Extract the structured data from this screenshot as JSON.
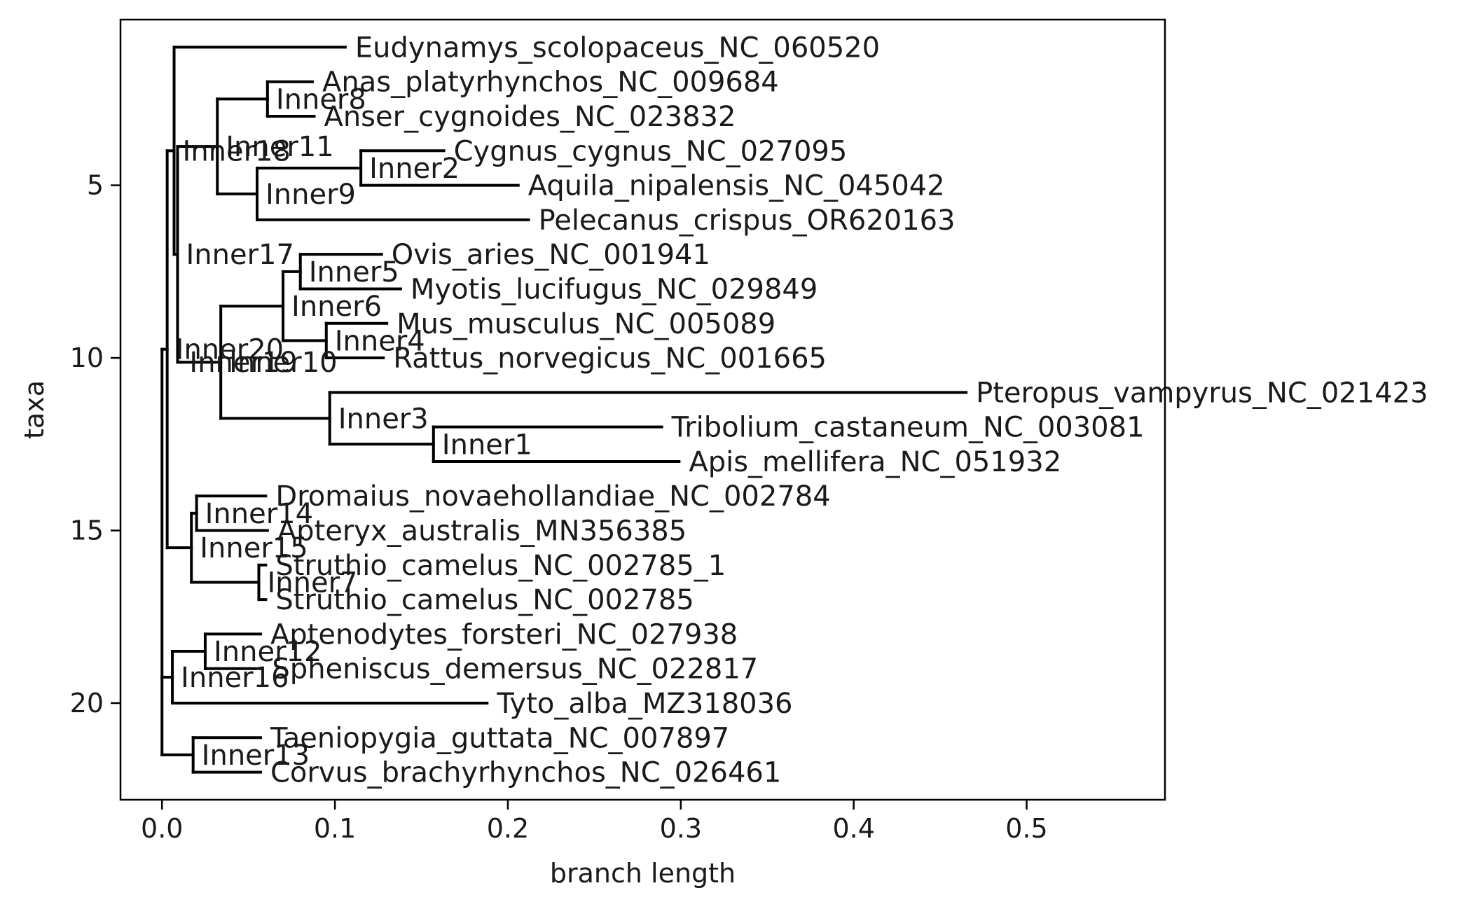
{
  "chart_data": {
    "type": "tree",
    "xlabel": "branch length",
    "ylabel": "taxa",
    "xlim": [
      -0.024,
      0.58
    ],
    "ylim": [
      22.8,
      0.2
    ],
    "xticks": [
      0.0,
      0.1,
      0.2,
      0.3,
      0.4,
      0.5
    ],
    "yticks": [
      5,
      10,
      15,
      20
    ],
    "grid": false,
    "leaves": [
      {
        "name": "Eudynamys_scolopaceus_NC_060520",
        "x": 0.106,
        "y": 1
      },
      {
        "name": "Anas_platyrhynchos_NC_009684",
        "x": 0.087,
        "y": 2
      },
      {
        "name": "Anser_cygnoides_NC_023832",
        "x": 0.088,
        "y": 3
      },
      {
        "name": "Cygnus_cygnus_NC_027095",
        "x": 0.163,
        "y": 4
      },
      {
        "name": "Aquila_nipalensis_NC_045042",
        "x": 0.206,
        "y": 5
      },
      {
        "name": "Pelecanus_crispus_OR620163",
        "x": 0.212,
        "y": 6
      },
      {
        "name": "Ovis_aries_NC_001941",
        "x": 0.127,
        "y": 7
      },
      {
        "name": "Myotis_lucifugus_NC_029849",
        "x": 0.138,
        "y": 8
      },
      {
        "name": "Mus_musculus_NC_005089",
        "x": 0.13,
        "y": 9
      },
      {
        "name": "Rattus_norvegicus_NC_001665",
        "x": 0.128,
        "y": 10
      },
      {
        "name": "Pteropus_vampyrus_NC_021423",
        "x": 0.465,
        "y": 11
      },
      {
        "name": "Tribolium_castaneum_NC_003081",
        "x": 0.289,
        "y": 12
      },
      {
        "name": "Apis_mellifera_NC_051932",
        "x": 0.299,
        "y": 13
      },
      {
        "name": "Dromaius_novaehollandiae_NC_002784",
        "x": 0.06,
        "y": 14
      },
      {
        "name": "Apteryx_australis_MN356385",
        "x": 0.061,
        "y": 15
      },
      {
        "name": "Struthio_camelus_NC_002785_1",
        "x": 0.06,
        "y": 16
      },
      {
        "name": "Struthio_camelus_NC_002785",
        "x": 0.06,
        "y": 17
      },
      {
        "name": "Aptenodytes_forsteri_NC_027938",
        "x": 0.057,
        "y": 18
      },
      {
        "name": "Spheniscus_demersus_NC_022817",
        "x": 0.058,
        "y": 19
      },
      {
        "name": "Tyto_alba_MZ318036",
        "x": 0.188,
        "y": 20
      },
      {
        "name": "Taeniopygia_guttata_NC_007897",
        "x": 0.057,
        "y": 21
      },
      {
        "name": "Corvus_brachyrhynchos_NC_026461",
        "x": 0.057,
        "y": 22
      }
    ],
    "internal": [
      {
        "name": "",
        "x": 0.0,
        "children": [
          "Inner20",
          "Inner16",
          "Inner13"
        ]
      },
      {
        "name": "Inner20",
        "x": 0.003,
        "children": [
          "Inner18",
          "Inner15"
        ]
      },
      {
        "name": "Inner18",
        "x": 0.007,
        "children": [
          "Eudynamys_scolopaceus_NC_060520",
          "Inner17"
        ]
      },
      {
        "name": "Inner17",
        "x": 0.009,
        "children": [
          "Inner11",
          "Inner19"
        ]
      },
      {
        "name": "Inner11",
        "x": 0.032,
        "children": [
          "Inner8",
          "Inner9"
        ]
      },
      {
        "name": "Inner8",
        "x": 0.061,
        "children": [
          "Anas_platyrhynchos_NC_009684",
          "Anser_cygnoides_NC_023832"
        ]
      },
      {
        "name": "Inner9",
        "x": 0.055,
        "children": [
          "Inner2",
          "Pelecanus_crispus_OR620163"
        ]
      },
      {
        "name": "Inner2",
        "x": 0.115,
        "children": [
          "Cygnus_cygnus_NC_027095",
          "Aquila_nipalensis_NC_045042"
        ]
      },
      {
        "name": "Inner19",
        "x": 0.011,
        "children": [
          "Inner10"
        ]
      },
      {
        "name": "Inner10",
        "x": 0.034,
        "children": [
          "Inner6",
          "Inner3"
        ]
      },
      {
        "name": "Inner6",
        "x": 0.07,
        "children": [
          "Inner5",
          "Inner4"
        ]
      },
      {
        "name": "Inner5",
        "x": 0.08,
        "children": [
          "Ovis_aries_NC_001941",
          "Myotis_lucifugus_NC_029849"
        ]
      },
      {
        "name": "Inner4",
        "x": 0.095,
        "children": [
          "Mus_musculus_NC_005089",
          "Rattus_norvegicus_NC_001665"
        ]
      },
      {
        "name": "Inner3",
        "x": 0.097,
        "children": [
          "Pteropus_vampyrus_NC_021423",
          "Inner1"
        ]
      },
      {
        "name": "Inner1",
        "x": 0.157,
        "children": [
          "Tribolium_castaneum_NC_003081",
          "Apis_mellifera_NC_051932"
        ]
      },
      {
        "name": "Inner15",
        "x": 0.017,
        "children": [
          "Inner14",
          "Inner7"
        ]
      },
      {
        "name": "Inner14",
        "x": 0.02,
        "children": [
          "Dromaius_novaehollandiae_NC_002784",
          "Apteryx_australis_MN356385"
        ]
      },
      {
        "name": "Inner7",
        "x": 0.056,
        "children": [
          "Struthio_camelus_NC_002785_1",
          "Struthio_camelus_NC_002785"
        ]
      },
      {
        "name": "Inner16",
        "x": 0.006,
        "children": [
          "Inner12",
          "Tyto_alba_MZ318036"
        ]
      },
      {
        "name": "Inner12",
        "x": 0.025,
        "children": [
          "Aptenodytes_forsteri_NC_027938",
          "Spheniscus_demersus_NC_022817"
        ]
      },
      {
        "name": "Inner13",
        "x": 0.018,
        "children": [
          "Taeniopygia_guttata_NC_007897",
          "Corvus_brachyrhynchos_NC_026461"
        ]
      }
    ]
  }
}
